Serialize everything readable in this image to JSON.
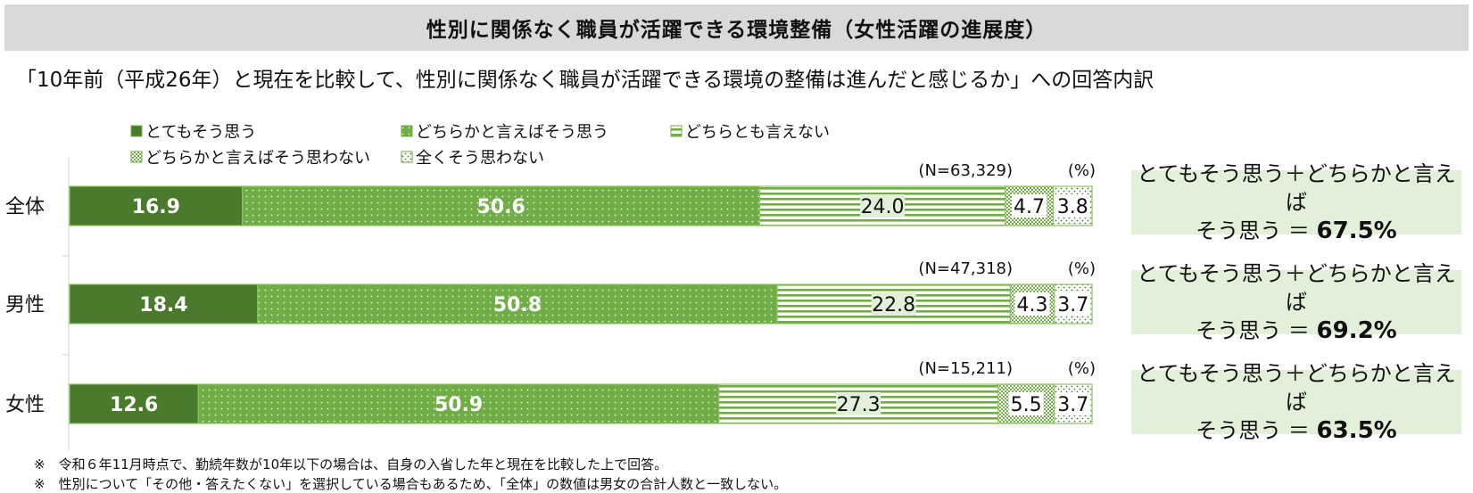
{
  "title": "性別に関係なく職員が活躍できる環境整備（女性活躍の進展度）",
  "subtitle": "「10年前（平成26年）と現在を比較して、性別に関係なく職員が活躍できる環境の整備は進んだと感じるか」への回答内訳",
  "chart_data": {
    "type": "bar",
    "orientation": "horizontal",
    "stacked": true,
    "unit_label": "(%)",
    "categories": [
      "全体",
      "男性",
      "女性"
    ],
    "n_labels": [
      "(N=63,329)",
      "(N=47,318)",
      "(N=15,211)"
    ],
    "series": [
      {
        "name": "とてもそう思う",
        "pattern": "solid-dark",
        "values": [
          16.9,
          18.4,
          12.6
        ],
        "labels": [
          "16.9",
          "18.4",
          "12.6"
        ]
      },
      {
        "name": "どちらかと言えばそう思う",
        "pattern": "dots-green",
        "values": [
          50.6,
          50.8,
          50.9
        ],
        "labels": [
          "50.6",
          "50.8",
          "50.9"
        ]
      },
      {
        "name": "どちらとも言えない",
        "pattern": "horizontal-lines",
        "values": [
          24.0,
          22.8,
          27.3
        ],
        "labels": [
          "24.0",
          "22.8",
          "27.3"
        ]
      },
      {
        "name": "どちらかと言えばそう思わない",
        "pattern": "checker",
        "values": [
          4.7,
          4.3,
          5.5
        ],
        "labels": [
          "4.7",
          "4.3",
          "5.5"
        ]
      },
      {
        "name": "全くそう思わない",
        "pattern": "sparse-dots",
        "values": [
          3.8,
          3.7,
          3.7
        ],
        "labels": [
          "3.8",
          "3.7",
          "3.7"
        ]
      }
    ],
    "xlim": [
      0,
      100
    ],
    "legend_position": "top"
  },
  "summaries": [
    {
      "line1": "とてもそう思う＋どちらかと言えば",
      "line2": "そう思う ＝ ",
      "value": "67.5%"
    },
    {
      "line1": "とてもそう思う＋どちらかと言えば",
      "line2": "そう思う ＝ ",
      "value": "69.2%"
    },
    {
      "line1": "とてもそう思う＋どちらかと言えば",
      "line2": "そう思う ＝ ",
      "value": "63.5%"
    }
  ],
  "notes": [
    "※　令和６年11月時点で、勤続年数が10年以下の場合は、自身の入省した年と現在を比較した上で回答。",
    "※　性別について「その他・答えたくない」を選択している場合もあるため、「全体」の数値は男女の合計人数と一致しない。"
  ],
  "colors": {
    "dark_green": "#4a7a2c",
    "mid_green": "#70ad47",
    "light_green": "#a9d18e",
    "border": "#8fc15f",
    "summary_bg": "#e2efd9"
  }
}
